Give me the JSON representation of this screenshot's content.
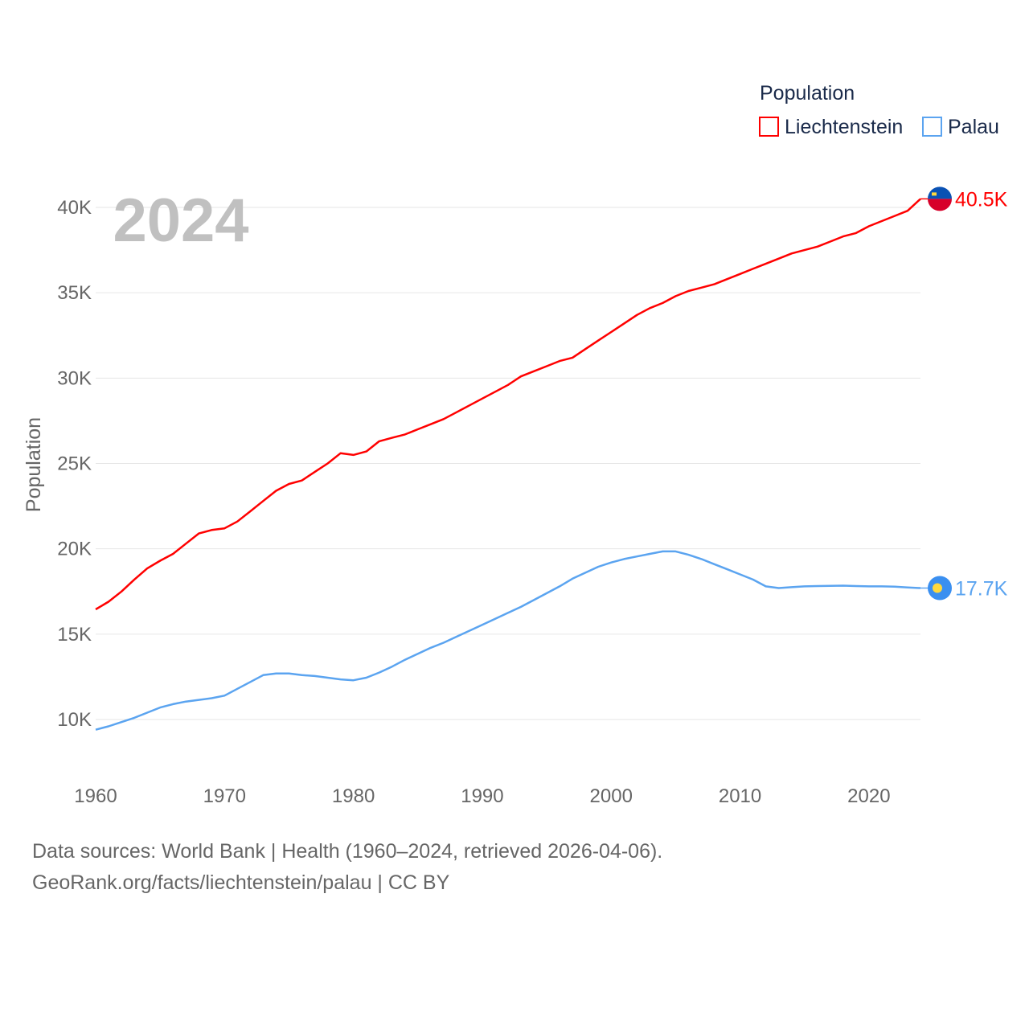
{
  "chart_data": {
    "type": "line",
    "title": "",
    "legend_title": "Population",
    "legend_position": "top-right",
    "xlabel": "",
    "ylabel": "Population",
    "xlim": [
      1960,
      2024
    ],
    "ylim": [
      7000,
      42500
    ],
    "x_ticks": [
      1960,
      1970,
      1980,
      1990,
      2000,
      2010,
      2020
    ],
    "x_tick_labels": [
      "1960",
      "1970",
      "1980",
      "1990",
      "2000",
      "2010",
      "2020"
    ],
    "y_ticks": [
      10000,
      15000,
      20000,
      25000,
      30000,
      35000,
      40000
    ],
    "y_tick_labels": [
      "10K",
      "15K",
      "20K",
      "25K",
      "30K",
      "35K",
      "40K"
    ],
    "grid": true,
    "year_label": "2024",
    "x": [
      1960,
      1961,
      1962,
      1963,
      1964,
      1965,
      1966,
      1967,
      1968,
      1969,
      1970,
      1971,
      1972,
      1973,
      1974,
      1975,
      1976,
      1977,
      1978,
      1979,
      1980,
      1981,
      1982,
      1983,
      1984,
      1985,
      1986,
      1987,
      1988,
      1989,
      1990,
      1991,
      1992,
      1993,
      1994,
      1995,
      1996,
      1997,
      1998,
      1999,
      2000,
      2001,
      2002,
      2003,
      2004,
      2005,
      2006,
      2007,
      2008,
      2009,
      2010,
      2011,
      2012,
      2013,
      2014,
      2015,
      2016,
      2017,
      2018,
      2019,
      2020,
      2021,
      2022,
      2023,
      2024
    ],
    "series": [
      {
        "name": "Liechtenstein",
        "color": "#ff0000",
        "end_label": "40.5K",
        "values": [
          16450,
          16900,
          17500,
          18200,
          18850,
          19300,
          19700,
          20300,
          20900,
          21100,
          21200,
          21600,
          22200,
          22800,
          23400,
          23800,
          24000,
          24500,
          25000,
          25600,
          25500,
          25700,
          26300,
          26500,
          26700,
          27000,
          27300,
          27600,
          28000,
          28400,
          28800,
          29200,
          29600,
          30100,
          30400,
          30700,
          31000,
          31200,
          31700,
          32200,
          32700,
          33200,
          33700,
          34100,
          34400,
          34800,
          35100,
          35300,
          35500,
          35800,
          36100,
          36400,
          36700,
          37000,
          37300,
          37500,
          37700,
          38000,
          38300,
          38500,
          38900,
          39200,
          39500,
          39800,
          40500
        ]
      },
      {
        "name": "Palau",
        "color": "#5ba4f0",
        "end_label": "17.7K",
        "values": [
          9400,
          9600,
          9850,
          10100,
          10400,
          10700,
          10900,
          11050,
          11150,
          11250,
          11400,
          11800,
          12200,
          12600,
          12700,
          12700,
          12600,
          12550,
          12450,
          12350,
          12300,
          12450,
          12750,
          13100,
          13500,
          13850,
          14200,
          14500,
          14850,
          15200,
          15550,
          15900,
          16250,
          16600,
          17000,
          17400,
          17800,
          18250,
          18600,
          18950,
          19200,
          19400,
          19550,
          19700,
          19850,
          19850,
          19650,
          19400,
          19100,
          18800,
          18500,
          18200,
          17800,
          17700,
          17750,
          17800,
          17820,
          17830,
          17840,
          17820,
          17800,
          17800,
          17780,
          17740,
          17700
        ]
      }
    ]
  },
  "footer": {
    "line1": "Data sources: World Bank | Health (1960–2024, retrieved 2026-04-06).",
    "line2": "GeoRank.org/facts/liechtenstein/palau | CC BY"
  }
}
